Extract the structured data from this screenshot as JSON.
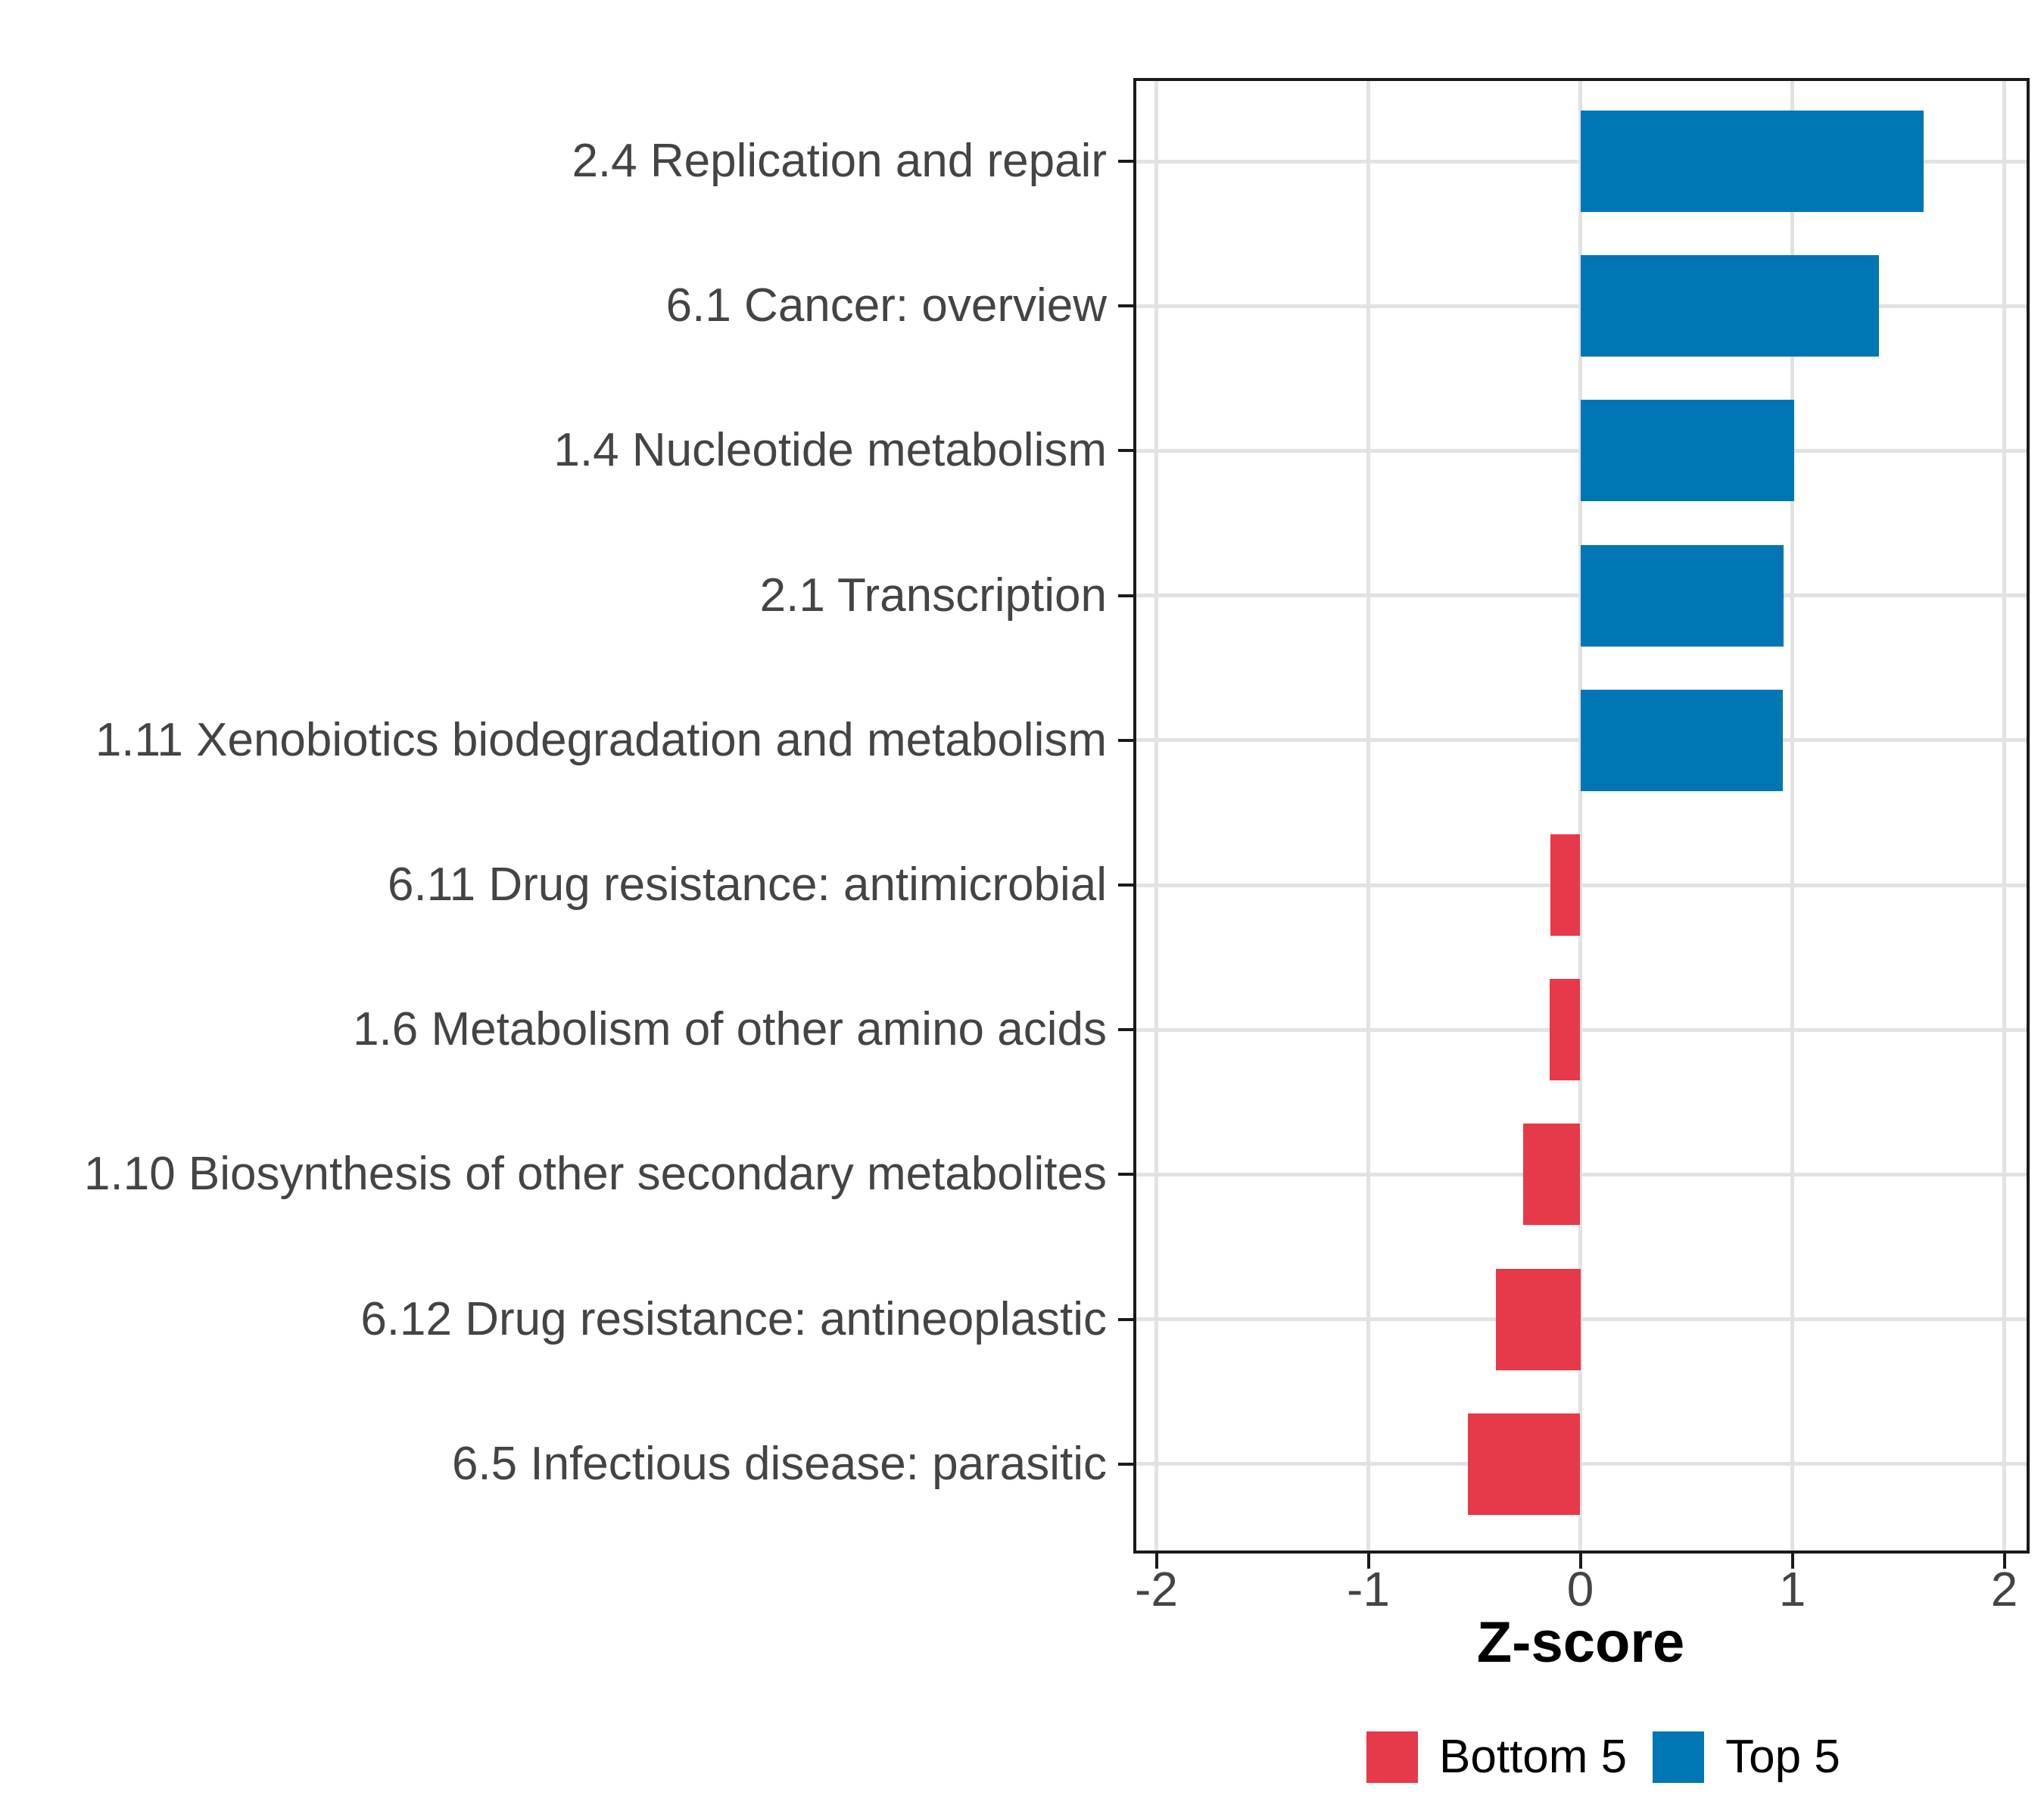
{
  "chart_data": {
    "type": "bar",
    "orientation": "horizontal",
    "title": "",
    "xlabel": "Z-score",
    "ylabel": "",
    "categories": [
      "2.4 Replication and repair",
      "6.1 Cancer: overview",
      "1.4 Nucleotide metabolism",
      "2.1 Transcription",
      "1.11 Xenobiotics biodegradation and metabolism",
      "6.11 Drug resistance: antimicrobial",
      "1.6 Metabolism of other amino acids",
      "1.10 Biosynthesis of other secondary metabolites",
      "6.12 Drug resistance: antineoplastic",
      "6.5 Infectious disease: parasitic"
    ],
    "values": [
      1.62,
      1.41,
      1.01,
      0.96,
      0.955,
      -0.14,
      -0.145,
      -0.27,
      -0.4,
      -0.53
    ],
    "group_of_each_bar": [
      "Top 5",
      "Top 5",
      "Top 5",
      "Top 5",
      "Top 5",
      "Bottom 5",
      "Bottom 5",
      "Bottom 5",
      "Bottom 5",
      "Bottom 5"
    ],
    "group_colors": {
      "Top 5": "#0077B4",
      "Bottom 5": "#E6394A"
    },
    "xlim": [
      -2.1,
      2.1
    ],
    "xticks": {
      "values": [
        -2,
        -1,
        0,
        1,
        2
      ],
      "labels": [
        "-2",
        "-1",
        "0",
        "1",
        "2"
      ]
    },
    "grid": "major-only",
    "gridline_color": "#E2E2E2",
    "panel_border_color": "#1a1a1a",
    "axis_text_color": "#444444",
    "legend": {
      "position": "bottom",
      "items": [
        {
          "label": "Bottom 5",
          "color": "#E6394A"
        },
        {
          "label": "Top 5",
          "color": "#0077B4"
        }
      ]
    }
  }
}
